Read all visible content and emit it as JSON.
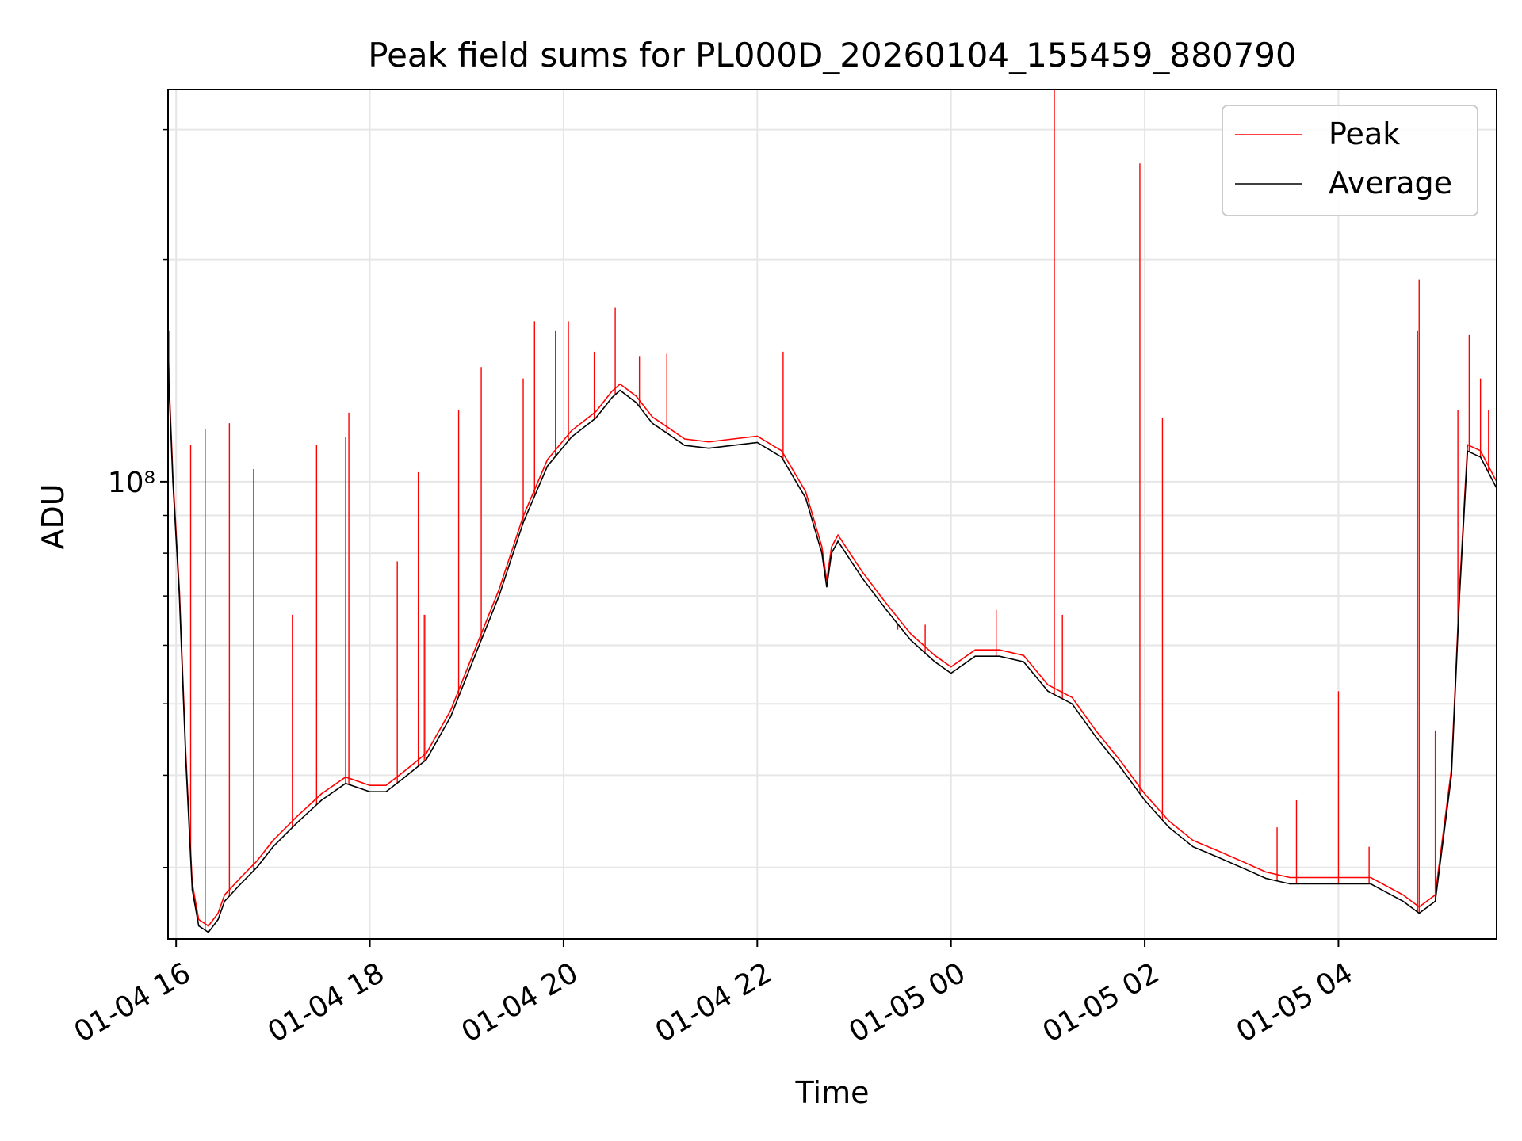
{
  "chart_data": {
    "type": "line",
    "title": "Peak field sums for PL000D_20260104_155459_880790",
    "xlabel": "Time",
    "ylabel": "ADU",
    "y_scale": "log",
    "ylim": [
      24000000,
      340000000
    ],
    "xlim": [
      "2026-01-04 15:55",
      "2026-01-05 05:38"
    ],
    "grid": true,
    "legend_position": "upper right",
    "x_ticks": [
      {
        "time": "2026-01-04 16:00",
        "label": "01-04 16"
      },
      {
        "time": "2026-01-04 18:00",
        "label": "01-04 18"
      },
      {
        "time": "2026-01-04 20:00",
        "label": "01-04 20"
      },
      {
        "time": "2026-01-04 22:00",
        "label": "01-04 22"
      },
      {
        "time": "2026-01-05 00:00",
        "label": "01-05 00"
      },
      {
        "time": "2026-01-05 02:00",
        "label": "01-05 02"
      },
      {
        "time": "2026-01-05 04:00",
        "label": "01-05 04"
      }
    ],
    "y_ticks": [
      {
        "value": 100000000,
        "label": "10⁸"
      }
    ],
    "y_minor_ticks": [
      30000000,
      40000000,
      50000000,
      60000000,
      70000000,
      80000000,
      90000000,
      200000000,
      300000000
    ],
    "series": [
      {
        "name": "Average",
        "color": "#000000",
        "points": [
          [
            "2026-01-04 15:55",
            145000000
          ],
          [
            "2026-01-04 15:58",
            100000000
          ],
          [
            "2026-01-04 16:02",
            70000000
          ],
          [
            "2026-01-04 16:06",
            42000000
          ],
          [
            "2026-01-04 16:10",
            28000000
          ],
          [
            "2026-01-04 16:14",
            25000000
          ],
          [
            "2026-01-04 16:20",
            24500000
          ],
          [
            "2026-01-04 16:26",
            25500000
          ],
          [
            "2026-01-04 16:30",
            27000000
          ],
          [
            "2026-01-04 16:40",
            28500000
          ],
          [
            "2026-01-04 16:50",
            30000000
          ],
          [
            "2026-01-04 17:00",
            32000000
          ],
          [
            "2026-01-04 17:15",
            34500000
          ],
          [
            "2026-01-04 17:30",
            37000000
          ],
          [
            "2026-01-04 17:45",
            39000000
          ],
          [
            "2026-01-04 18:00",
            38000000
          ],
          [
            "2026-01-04 18:10",
            38000000
          ],
          [
            "2026-01-04 18:20",
            39500000
          ],
          [
            "2026-01-04 18:35",
            42000000
          ],
          [
            "2026-01-04 18:50",
            48000000
          ],
          [
            "2026-01-04 19:05",
            58000000
          ],
          [
            "2026-01-04 19:20",
            70000000
          ],
          [
            "2026-01-04 19:35",
            88000000
          ],
          [
            "2026-01-04 19:50",
            105000000
          ],
          [
            "2026-01-04 20:05",
            115000000
          ],
          [
            "2026-01-04 20:20",
            122000000
          ],
          [
            "2026-01-04 20:30",
            130000000
          ],
          [
            "2026-01-04 20:35",
            133000000
          ],
          [
            "2026-01-04 20:45",
            128000000
          ],
          [
            "2026-01-04 20:55",
            120000000
          ],
          [
            "2026-01-04 21:05",
            116000000
          ],
          [
            "2026-01-04 21:15",
            112000000
          ],
          [
            "2026-01-04 21:30",
            111000000
          ],
          [
            "2026-01-04 21:45",
            112000000
          ],
          [
            "2026-01-04 22:00",
            113000000
          ],
          [
            "2026-01-04 22:15",
            108000000
          ],
          [
            "2026-01-04 22:30",
            95000000
          ],
          [
            "2026-01-04 22:40",
            80000000
          ],
          [
            "2026-01-04 22:43",
            72000000
          ],
          [
            "2026-01-04 22:46",
            80000000
          ],
          [
            "2026-01-04 22:50",
            83000000
          ],
          [
            "2026-01-04 23:05",
            74000000
          ],
          [
            "2026-01-04 23:20",
            67000000
          ],
          [
            "2026-01-04 23:35",
            61000000
          ],
          [
            "2026-01-04 23:50",
            57000000
          ],
          [
            "2026-01-05 00:00",
            55000000
          ],
          [
            "2026-01-05 00:15",
            58000000
          ],
          [
            "2026-01-05 00:30",
            58000000
          ],
          [
            "2026-01-05 00:45",
            57000000
          ],
          [
            "2026-01-05 01:00",
            52000000
          ],
          [
            "2026-01-05 01:15",
            50000000
          ],
          [
            "2026-01-05 01:30",
            45000000
          ],
          [
            "2026-01-05 01:45",
            41000000
          ],
          [
            "2026-01-05 02:00",
            37000000
          ],
          [
            "2026-01-05 02:15",
            34000000
          ],
          [
            "2026-01-05 02:30",
            32000000
          ],
          [
            "2026-01-05 02:45",
            31000000
          ],
          [
            "2026-01-05 03:00",
            30000000
          ],
          [
            "2026-01-05 03:15",
            29000000
          ],
          [
            "2026-01-05 03:30",
            28500000
          ],
          [
            "2026-01-05 03:45",
            28500000
          ],
          [
            "2026-01-05 04:00",
            28500000
          ],
          [
            "2026-01-05 04:20",
            28500000
          ],
          [
            "2026-01-05 04:40",
            27000000
          ],
          [
            "2026-01-05 04:50",
            26000000
          ],
          [
            "2026-01-05 05:00",
            27000000
          ],
          [
            "2026-01-05 05:10",
            40000000
          ],
          [
            "2026-01-05 05:15",
            70000000
          ],
          [
            "2026-01-05 05:20",
            110000000
          ],
          [
            "2026-01-05 05:28",
            108000000
          ],
          [
            "2026-01-05 05:38",
            98000000
          ]
        ]
      },
      {
        "name": "Peak",
        "color": "#ff0000",
        "spikes": [
          [
            "2026-01-04 15:56",
            160000000
          ],
          [
            "2026-01-04 16:09",
            112000000
          ],
          [
            "2026-01-04 16:18",
            118000000
          ],
          [
            "2026-01-04 16:33",
            120000000
          ],
          [
            "2026-01-04 16:48",
            104000000
          ],
          [
            "2026-01-04 17:12",
            66000000
          ],
          [
            "2026-01-04 17:27",
            112000000
          ],
          [
            "2026-01-04 17:45",
            115000000
          ],
          [
            "2026-01-04 17:47",
            124000000
          ],
          [
            "2026-01-04 18:17",
            78000000
          ],
          [
            "2026-01-04 18:30",
            103000000
          ],
          [
            "2026-01-04 18:34",
            66000000
          ],
          [
            "2026-01-04 18:33",
            66000000
          ],
          [
            "2026-01-04 18:55",
            125000000
          ],
          [
            "2026-01-04 19:09",
            143000000
          ],
          [
            "2026-01-04 19:35",
            138000000
          ],
          [
            "2026-01-04 19:42",
            165000000
          ],
          [
            "2026-01-04 19:55",
            160000000
          ],
          [
            "2026-01-04 20:03",
            165000000
          ],
          [
            "2026-01-04 20:19",
            150000000
          ],
          [
            "2026-01-04 20:32",
            172000000
          ],
          [
            "2026-01-04 20:47",
            148000000
          ],
          [
            "2026-01-04 21:04",
            149000000
          ],
          [
            "2026-01-04 22:16",
            150000000
          ],
          [
            "2026-01-04 23:27",
            63000000
          ],
          [
            "2026-01-04 23:44",
            64000000
          ],
          [
            "2026-01-05 00:28",
            67000000
          ],
          [
            "2026-01-05 01:04",
            340000000
          ],
          [
            "2026-01-05 01:09",
            66000000
          ],
          [
            "2026-01-05 01:57",
            270000000
          ],
          [
            "2026-01-05 02:11",
            122000000
          ],
          [
            "2026-01-05 03:22",
            34000000
          ],
          [
            "2026-01-05 03:34",
            37000000
          ],
          [
            "2026-01-05 04:00",
            52000000
          ],
          [
            "2026-01-05 04:19",
            32000000
          ],
          [
            "2026-01-05 04:49",
            160000000
          ],
          [
            "2026-01-05 04:50",
            188000000
          ],
          [
            "2026-01-05 05:00",
            46000000
          ],
          [
            "2026-01-05 05:14",
            125000000
          ],
          [
            "2026-01-05 05:21",
            158000000
          ],
          [
            "2026-01-05 05:28",
            138000000
          ],
          [
            "2026-01-05 05:33",
            125000000
          ]
        ]
      }
    ]
  }
}
